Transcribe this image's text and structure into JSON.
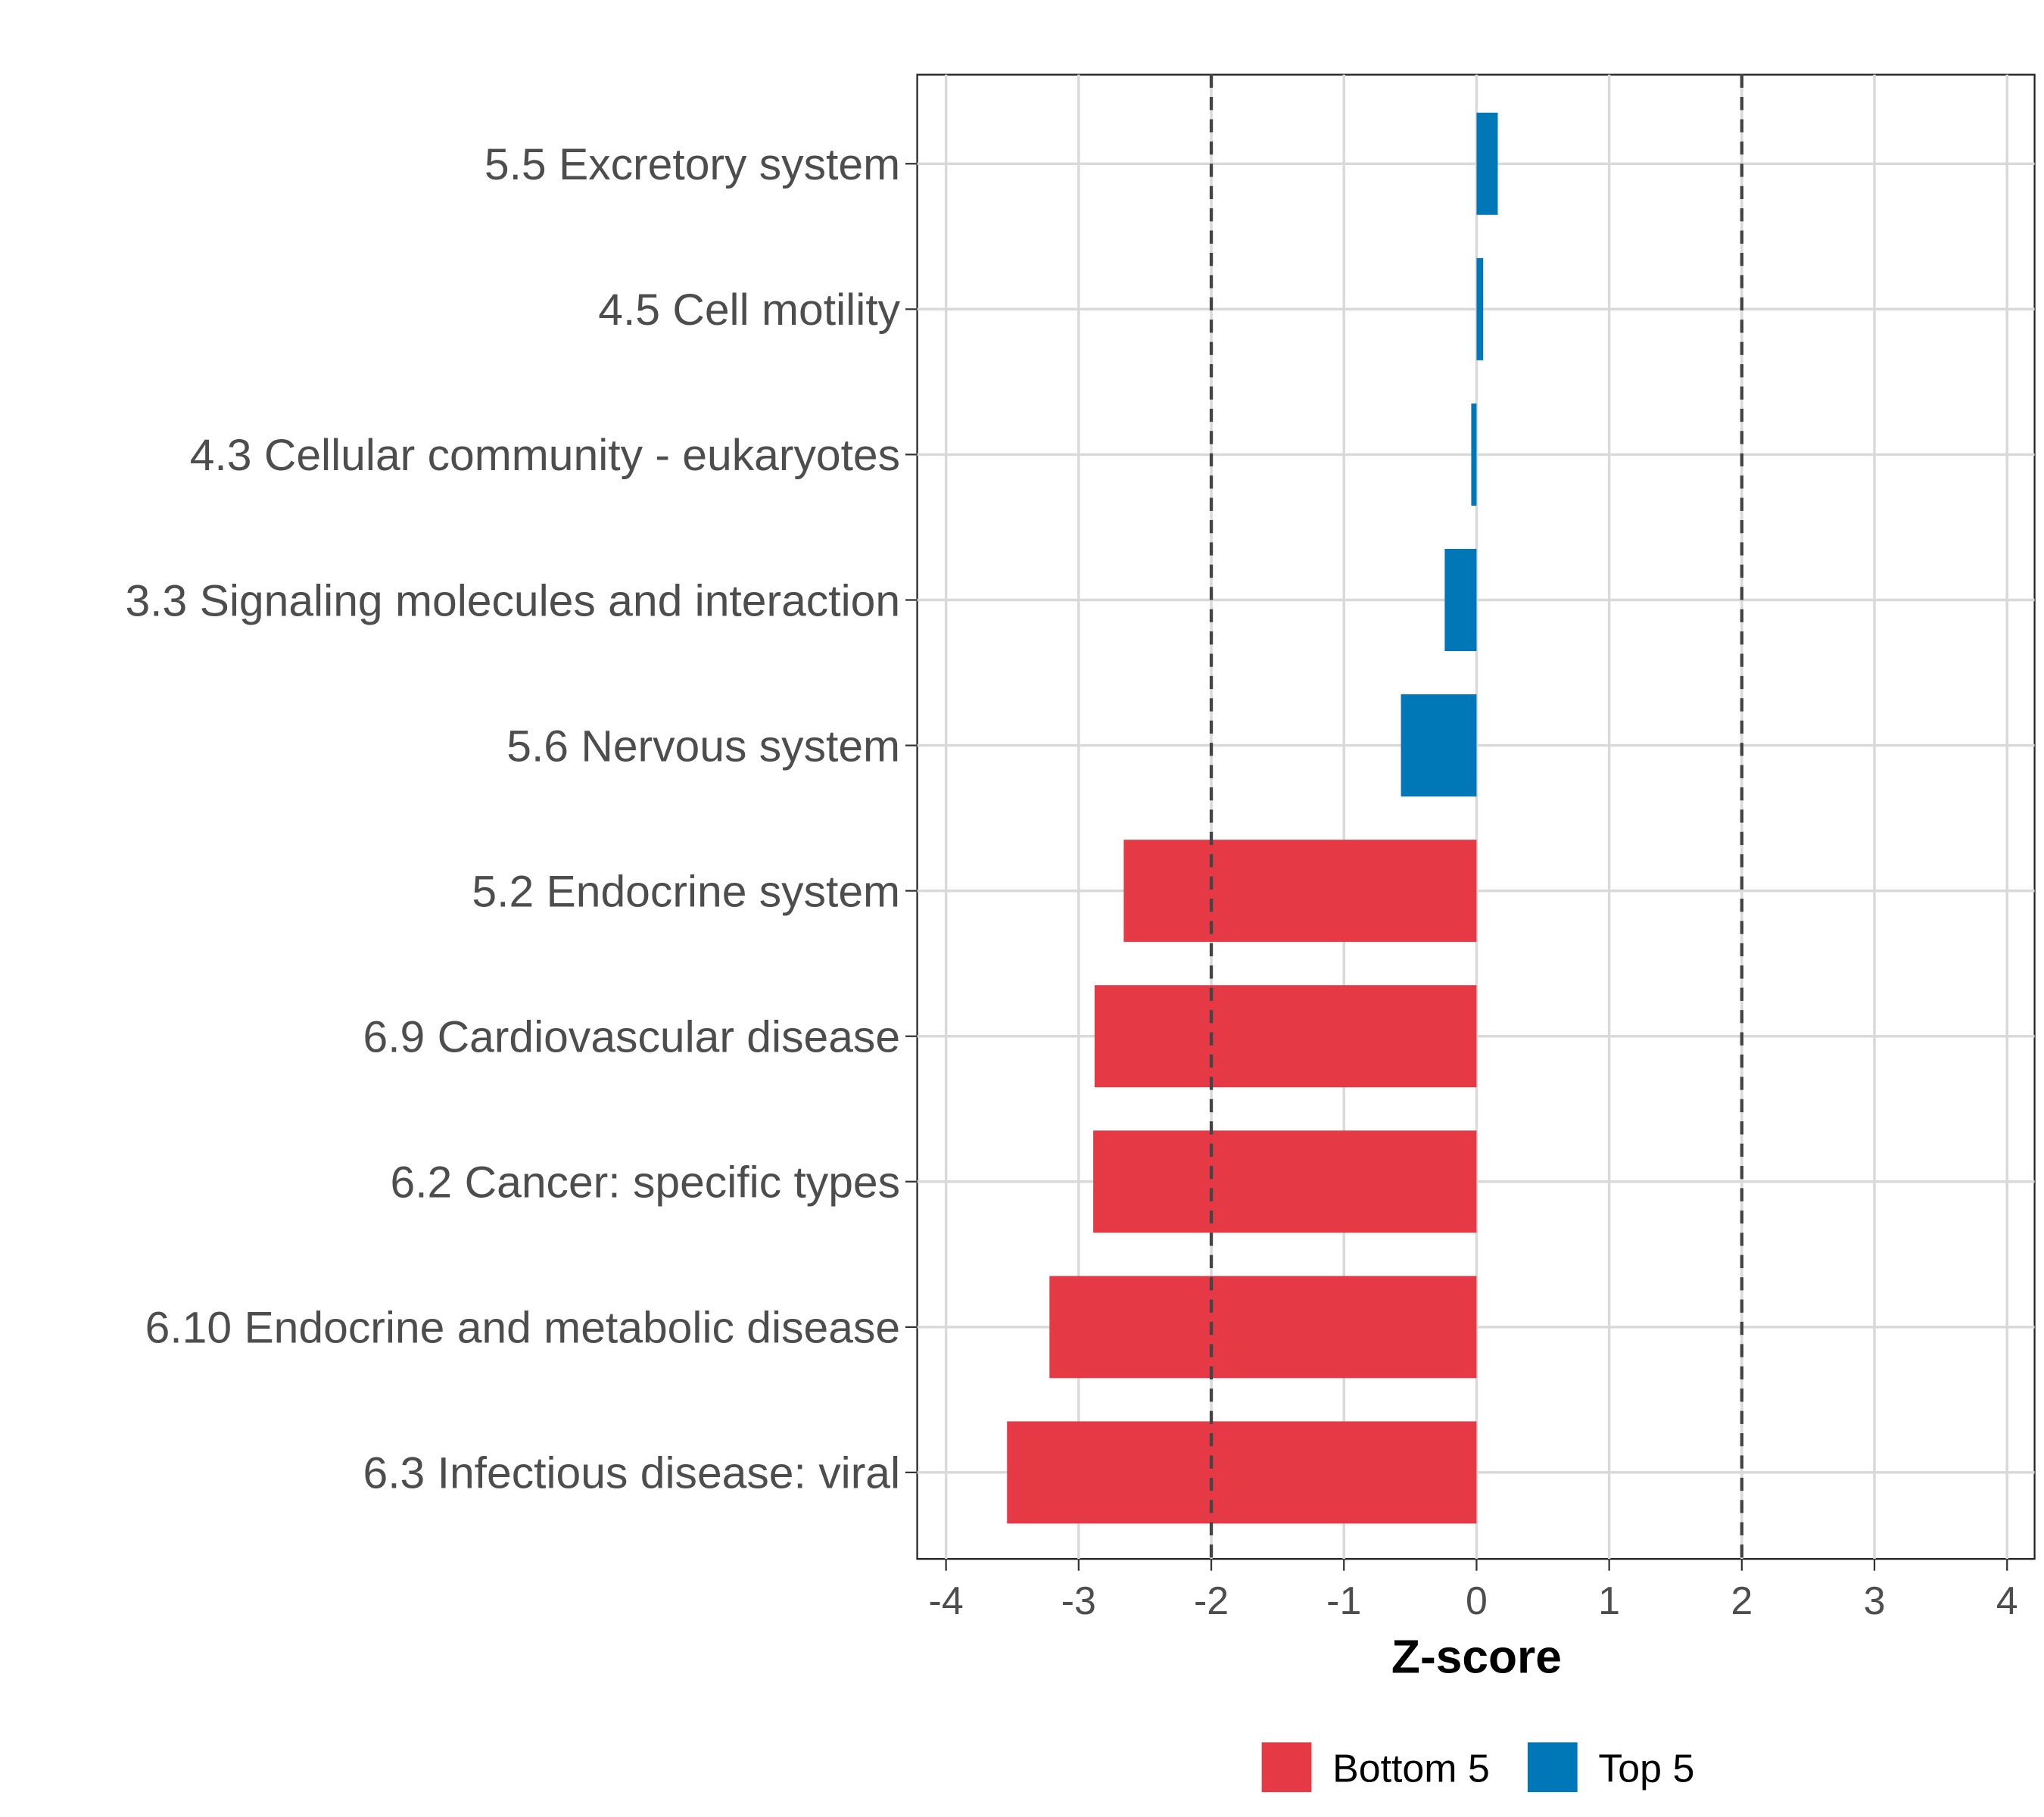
{
  "chart_data": {
    "type": "bar",
    "orientation": "horizontal",
    "title": "",
    "xlabel": "Z-score",
    "ylabel": "",
    "xlim": [
      -4.2,
      4.2
    ],
    "xticks": [
      -4,
      -3,
      -2,
      -1,
      0,
      1,
      2,
      3,
      4
    ],
    "reference_lines": [
      -2,
      2
    ],
    "grid": true,
    "legend_position": "bottom",
    "categories": [
      "5.5 Excretory system",
      "4.5 Cell motility",
      "4.3 Cellular community - eukaryotes",
      "3.3 Signaling molecules and interaction",
      "5.6 Nervous system",
      "5.2 Endocrine system",
      "6.9 Cardiovascular disease",
      "6.2 Cancer: specific types",
      "6.10 Endocrine and metabolic disease",
      "6.3 Infectious disease: viral"
    ],
    "values": [
      0.16,
      0.05,
      -0.04,
      -0.24,
      -0.57,
      -2.66,
      -2.88,
      -2.89,
      -3.22,
      -3.54
    ],
    "groups": [
      "Top 5",
      "Top 5",
      "Top 5",
      "Top 5",
      "Top 5",
      "Bottom 5",
      "Bottom 5",
      "Bottom 5",
      "Bottom 5",
      "Bottom 5"
    ],
    "legend": [
      {
        "name": "Bottom 5",
        "color": "#E63946"
      },
      {
        "name": "Top 5",
        "color": "#0077B6"
      }
    ]
  }
}
